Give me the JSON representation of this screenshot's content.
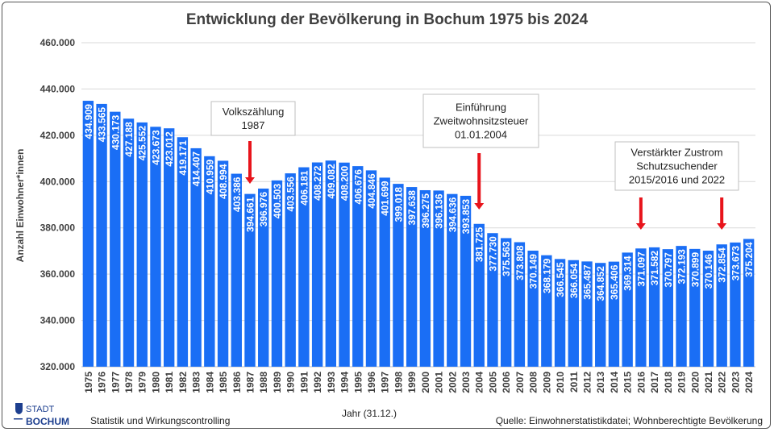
{
  "chart_data": {
    "type": "bar",
    "title": "Entwicklung der Bevölkerung in Bochum 1975 bis 2024",
    "xlabel": "Jahr (31.12.)",
    "ylabel": "Anzahl Einwohner*innen",
    "ylim": [
      320000,
      460000
    ],
    "yticks": [
      "320.000",
      "340.000",
      "360.000",
      "380.000",
      "400.000",
      "420.000",
      "440.000",
      "460.000"
    ],
    "grid": true,
    "bar_color": "#1a6ef5",
    "categories": [
      "1975",
      "1976",
      "1977",
      "1978",
      "1979",
      "1980",
      "1981",
      "1982",
      "1983",
      "1984",
      "1985",
      "1986",
      "1987",
      "1988",
      "1989",
      "1990",
      "1991",
      "1992",
      "1993",
      "1994",
      "1995",
      "1996",
      "1997",
      "1998",
      "1999",
      "2000",
      "2001",
      "2002",
      "2003",
      "2004",
      "2005",
      "2006",
      "2007",
      "2008",
      "2009",
      "2010",
      "2011",
      "2012",
      "2013",
      "2014",
      "2015",
      "2016",
      "2017",
      "2018",
      "2019",
      "2020",
      "2021",
      "2022",
      "2023",
      "2024"
    ],
    "values": [
      434909,
      433565,
      430173,
      427188,
      425552,
      423673,
      423012,
      419171,
      414407,
      410959,
      408994,
      403386,
      394661,
      396976,
      400503,
      403556,
      406181,
      408272,
      409082,
      408200,
      406676,
      404846,
      401699,
      399018,
      397638,
      396275,
      396136,
      394636,
      393853,
      381725,
      377730,
      375563,
      373808,
      370149,
      368179,
      366545,
      366054,
      365487,
      364852,
      365406,
      369314,
      371097,
      371582,
      370797,
      372193,
      370899,
      370146,
      372854,
      373673,
      375204
    ],
    "labels": [
      "434.909",
      "433.565",
      "430.173",
      "427.188",
      "425.552",
      "423.673",
      "423.012",
      "419.171",
      "414.407",
      "410.959",
      "408.994",
      "403.386",
      "394.661",
      "396.976",
      "400.503",
      "403.556",
      "406.181",
      "408.272",
      "409.082",
      "408.200",
      "406.676",
      "404.846",
      "401.699",
      "399.018",
      "397.638",
      "396.275",
      "396.136",
      "394.636",
      "393.853",
      "381.725",
      "377.730",
      "375.563",
      "373.808",
      "370.149",
      "368.179",
      "366.545",
      "366.054",
      "365.487",
      "364.852",
      "365.406",
      "369.314",
      "371.097",
      "371.582",
      "370.797",
      "372.193",
      "370.899",
      "370.146",
      "372.854",
      "373.673",
      "375.204"
    ],
    "annotations": [
      {
        "lines": [
          "Volkszählung",
          "1987"
        ],
        "arrow_years": [
          "1987"
        ]
      },
      {
        "lines": [
          "Einführung",
          "Zweitwohnsitzsteuer",
          "01.01.2004"
        ],
        "arrow_years": [
          "2004"
        ]
      },
      {
        "lines": [
          "Verstärkter Zustrom",
          "Schutzsuchender",
          "2015/2016 und 2022"
        ],
        "arrow_years": [
          "2016",
          "2022"
        ]
      }
    ],
    "arrow_color": "#e8141b"
  },
  "footer": {
    "logo_top": "STADT",
    "logo_bottom": "BOCHUM",
    "department": "Statistik und Wirkungscontrolling",
    "source": "Quelle: Einwohnerstatistikdatei; Wohnberechtigte Bevölkerung"
  }
}
